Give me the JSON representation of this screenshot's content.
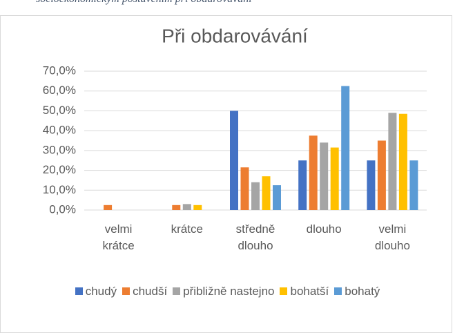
{
  "caption": "socioekonomickým postavením při obdarovávání",
  "chart_data": {
    "type": "bar",
    "title": "Při obdarovávání",
    "categories": [
      "velmi krátce",
      "krátce",
      "středně dlouho",
      "dlouho",
      "velmi dlouho"
    ],
    "series": [
      {
        "name": "chudý",
        "color": "#4472c4",
        "values": [
          0,
          0,
          50,
          25,
          25
        ]
      },
      {
        "name": "chudší",
        "color": "#ed7d31",
        "values": [
          2.5,
          2.5,
          21.5,
          37.5,
          35
        ]
      },
      {
        "name": "přibližně nastejno",
        "color": "#a5a5a5",
        "values": [
          0,
          3,
          14,
          34,
          49
        ]
      },
      {
        "name": "bohatší",
        "color": "#ffc000",
        "values": [
          0,
          2.5,
          17,
          31.5,
          48.5
        ]
      },
      {
        "name": "bohatý",
        "color": "#5b9bd5",
        "values": [
          0,
          0,
          12.5,
          62.5,
          25
        ]
      }
    ],
    "ylim": [
      0,
      70
    ],
    "yticks": [
      {
        "value": 0,
        "label": "0,0%"
      },
      {
        "value": 10,
        "label": "10,0%"
      },
      {
        "value": 20,
        "label": "20,0%"
      },
      {
        "value": 30,
        "label": "30,0%"
      },
      {
        "value": 40,
        "label": "40,0%"
      },
      {
        "value": 50,
        "label": "50,0%"
      },
      {
        "value": 60,
        "label": "60,0%"
      },
      {
        "value": 70,
        "label": "70,0%"
      }
    ],
    "grid": true,
    "legend": "bottom"
  }
}
